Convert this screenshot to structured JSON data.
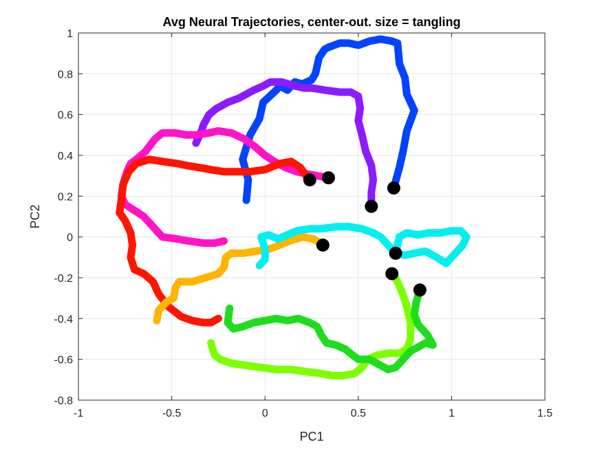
{
  "chart_data": {
    "type": "line",
    "title": "Avg Neural Trajectories, center-out. size = tangling",
    "xlabel": "PC1",
    "ylabel": "PC2",
    "xlim": [
      -1,
      1.5
    ],
    "ylim": [
      -0.8,
      1
    ],
    "xticks": [
      -1,
      -0.5,
      0,
      0.5,
      1,
      1.5
    ],
    "xtick_labels": [
      "-1",
      "-0.5",
      "0",
      "0.5",
      "1",
      "1.5"
    ],
    "yticks": [
      -0.8,
      -0.6,
      -0.4,
      -0.2,
      0,
      0.2,
      0.4,
      0.6,
      0.8,
      1
    ],
    "ytick_labels": [
      "-0.8",
      "-0.6",
      "-0.4",
      "-0.2",
      "0",
      "0.2",
      "0.4",
      "0.6",
      "0.8",
      "1"
    ],
    "grid": true,
    "series": [
      {
        "color": "#0044ff",
        "end_marker": [
          0.69,
          0.24
        ],
        "points": [
          [
            -0.1,
            0.18
          ],
          [
            -0.09,
            0.28
          ],
          [
            -0.12,
            0.38
          ],
          [
            -0.08,
            0.5
          ],
          [
            -0.03,
            0.58
          ],
          [
            -0.01,
            0.66
          ],
          [
            0.06,
            0.72
          ],
          [
            0.08,
            0.74
          ],
          [
            0.12,
            0.72
          ],
          [
            0.16,
            0.76
          ],
          [
            0.2,
            0.75
          ],
          [
            0.25,
            0.77
          ],
          [
            0.27,
            0.8
          ],
          [
            0.29,
            0.88
          ],
          [
            0.32,
            0.92
          ],
          [
            0.34,
            0.93
          ],
          [
            0.4,
            0.95
          ],
          [
            0.45,
            0.95
          ],
          [
            0.5,
            0.94
          ],
          [
            0.56,
            0.96
          ],
          [
            0.62,
            0.97
          ],
          [
            0.68,
            0.96
          ],
          [
            0.71,
            0.95
          ],
          [
            0.72,
            0.85
          ],
          [
            0.75,
            0.78
          ],
          [
            0.76,
            0.7
          ],
          [
            0.8,
            0.62
          ],
          [
            0.76,
            0.52
          ],
          [
            0.74,
            0.42
          ],
          [
            0.72,
            0.34
          ],
          [
            0.69,
            0.24
          ]
        ]
      },
      {
        "color": "#8a1cff",
        "end_marker": [
          0.57,
          0.15
        ],
        "points": [
          [
            -0.37,
            0.46
          ],
          [
            -0.34,
            0.52
          ],
          [
            -0.33,
            0.55
          ],
          [
            -0.3,
            0.6
          ],
          [
            -0.26,
            0.63
          ],
          [
            -0.2,
            0.66
          ],
          [
            -0.14,
            0.68
          ],
          [
            -0.06,
            0.72
          ],
          [
            -0.01,
            0.74
          ],
          [
            0.03,
            0.76
          ],
          [
            0.09,
            0.76
          ],
          [
            0.16,
            0.74
          ],
          [
            0.21,
            0.73
          ],
          [
            0.25,
            0.73
          ],
          [
            0.32,
            0.72
          ],
          [
            0.4,
            0.71
          ],
          [
            0.46,
            0.71
          ],
          [
            0.5,
            0.69
          ],
          [
            0.51,
            0.63
          ],
          [
            0.5,
            0.57
          ],
          [
            0.52,
            0.5
          ],
          [
            0.54,
            0.42
          ],
          [
            0.57,
            0.35
          ],
          [
            0.58,
            0.28
          ],
          [
            0.57,
            0.22
          ],
          [
            0.57,
            0.15
          ]
        ]
      },
      {
        "color": "#ff14c8",
        "end_marker": [
          0.34,
          0.29
        ],
        "points": [
          [
            -0.22,
            -0.02
          ],
          [
            -0.27,
            -0.03
          ],
          [
            -0.33,
            -0.03
          ],
          [
            -0.41,
            -0.02
          ],
          [
            -0.47,
            -0.01
          ],
          [
            -0.55,
            0.0
          ],
          [
            -0.6,
            0.05
          ],
          [
            -0.65,
            0.1
          ],
          [
            -0.7,
            0.13
          ],
          [
            -0.75,
            0.16
          ],
          [
            -0.77,
            0.2
          ],
          [
            -0.76,
            0.26
          ],
          [
            -0.74,
            0.32
          ],
          [
            -0.72,
            0.36
          ],
          [
            -0.69,
            0.38
          ],
          [
            -0.64,
            0.42
          ],
          [
            -0.59,
            0.48
          ],
          [
            -0.55,
            0.51
          ],
          [
            -0.48,
            0.51
          ],
          [
            -0.42,
            0.5
          ],
          [
            -0.37,
            0.5
          ],
          [
            -0.3,
            0.51
          ],
          [
            -0.25,
            0.52
          ],
          [
            -0.18,
            0.51
          ],
          [
            -0.11,
            0.48
          ],
          [
            -0.05,
            0.44
          ],
          [
            0.0,
            0.4
          ],
          [
            0.05,
            0.37
          ],
          [
            0.11,
            0.34
          ],
          [
            0.17,
            0.32
          ],
          [
            0.22,
            0.31
          ],
          [
            0.28,
            0.3
          ],
          [
            0.34,
            0.29
          ]
        ]
      },
      {
        "color": "#ff1400",
        "end_marker": [
          0.24,
          0.28
        ],
        "points": [
          [
            -0.25,
            -0.4
          ],
          [
            -0.29,
            -0.42
          ],
          [
            -0.33,
            -0.42
          ],
          [
            -0.39,
            -0.41
          ],
          [
            -0.45,
            -0.39
          ],
          [
            -0.52,
            -0.34
          ],
          [
            -0.57,
            -0.28
          ],
          [
            -0.6,
            -0.22
          ],
          [
            -0.65,
            -0.18
          ],
          [
            -0.7,
            -0.16
          ],
          [
            -0.72,
            -0.1
          ],
          [
            -0.71,
            -0.04
          ],
          [
            -0.72,
            0.02
          ],
          [
            -0.75,
            0.08
          ],
          [
            -0.78,
            0.12
          ],
          [
            -0.77,
            0.18
          ],
          [
            -0.76,
            0.26
          ],
          [
            -0.73,
            0.32
          ],
          [
            -0.69,
            0.36
          ],
          [
            -0.62,
            0.38
          ],
          [
            -0.55,
            0.37
          ],
          [
            -0.47,
            0.36
          ],
          [
            -0.42,
            0.35
          ],
          [
            -0.35,
            0.34
          ],
          [
            -0.29,
            0.33
          ],
          [
            -0.22,
            0.32
          ],
          [
            -0.15,
            0.32
          ],
          [
            -0.08,
            0.32
          ],
          [
            0.0,
            0.33
          ],
          [
            0.08,
            0.36
          ],
          [
            0.14,
            0.37
          ],
          [
            0.19,
            0.34
          ],
          [
            0.22,
            0.3
          ],
          [
            0.24,
            0.28
          ]
        ]
      },
      {
        "color": "#ffb400",
        "end_marker": [
          0.31,
          -0.04
        ],
        "points": [
          [
            -0.58,
            -0.41
          ],
          [
            -0.57,
            -0.36
          ],
          [
            -0.53,
            -0.32
          ],
          [
            -0.49,
            -0.3
          ],
          [
            -0.48,
            -0.25
          ],
          [
            -0.46,
            -0.22
          ],
          [
            -0.39,
            -0.22
          ],
          [
            -0.32,
            -0.2
          ],
          [
            -0.25,
            -0.18
          ],
          [
            -0.22,
            -0.15
          ],
          [
            -0.21,
            -0.1
          ],
          [
            -0.18,
            -0.08
          ],
          [
            -0.12,
            -0.08
          ],
          [
            -0.05,
            -0.07
          ],
          [
            0.02,
            -0.06
          ],
          [
            0.08,
            -0.04
          ],
          [
            0.13,
            -0.02
          ],
          [
            0.2,
            0.0
          ],
          [
            0.26,
            -0.01
          ],
          [
            0.31,
            -0.04
          ]
        ]
      },
      {
        "color": "#00f0f0",
        "end_marker": [
          0.7,
          -0.08
        ],
        "points": [
          [
            -0.03,
            -0.14
          ],
          [
            0.0,
            -0.11
          ],
          [
            0.0,
            -0.06
          ],
          [
            -0.02,
            0.0
          ],
          [
            0.02,
            0.01
          ],
          [
            0.07,
            -0.01
          ],
          [
            0.12,
            0.01
          ],
          [
            0.17,
            0.03
          ],
          [
            0.24,
            0.04
          ],
          [
            0.3,
            0.04
          ],
          [
            0.38,
            0.05
          ],
          [
            0.45,
            0.05
          ],
          [
            0.52,
            0.04
          ],
          [
            0.58,
            0.02
          ],
          [
            0.62,
            0.0
          ],
          [
            0.66,
            -0.04
          ],
          [
            0.7,
            -0.08
          ],
          [
            0.75,
            -0.09
          ],
          [
            0.8,
            -0.08
          ],
          [
            0.86,
            -0.07
          ],
          [
            0.92,
            -0.1
          ],
          [
            0.97,
            -0.13
          ],
          [
            1.02,
            -0.08
          ],
          [
            1.06,
            -0.04
          ],
          [
            1.08,
            0.0
          ],
          [
            1.05,
            0.03
          ],
          [
            1.0,
            0.03
          ],
          [
            0.94,
            0.02
          ],
          [
            0.88,
            0.02
          ],
          [
            0.82,
            0.01
          ],
          [
            0.76,
            0.02
          ],
          [
            0.72,
            0.0
          ],
          [
            0.7,
            -0.08
          ]
        ]
      },
      {
        "color": "#7dff00",
        "end_marker": [
          0.68,
          -0.18
        ],
        "points": [
          [
            -0.29,
            -0.52
          ],
          [
            -0.27,
            -0.58
          ],
          [
            -0.24,
            -0.6
          ],
          [
            -0.18,
            -0.62
          ],
          [
            -0.1,
            -0.63
          ],
          [
            -0.02,
            -0.64
          ],
          [
            0.06,
            -0.65
          ],
          [
            0.14,
            -0.65
          ],
          [
            0.22,
            -0.66
          ],
          [
            0.3,
            -0.67
          ],
          [
            0.36,
            -0.68
          ],
          [
            0.42,
            -0.68
          ],
          [
            0.48,
            -0.67
          ],
          [
            0.52,
            -0.64
          ],
          [
            0.55,
            -0.6
          ],
          [
            0.6,
            -0.58
          ],
          [
            0.66,
            -0.57
          ],
          [
            0.72,
            -0.57
          ],
          [
            0.76,
            -0.55
          ],
          [
            0.78,
            -0.5
          ],
          [
            0.78,
            -0.42
          ],
          [
            0.76,
            -0.34
          ],
          [
            0.73,
            -0.26
          ],
          [
            0.7,
            -0.2
          ],
          [
            0.68,
            -0.18
          ]
        ]
      },
      {
        "color": "#1edc1e",
        "end_marker": [
          0.83,
          -0.26
        ],
        "points": [
          [
            -0.19,
            -0.35
          ],
          [
            -0.2,
            -0.42
          ],
          [
            -0.17,
            -0.45
          ],
          [
            -0.12,
            -0.44
          ],
          [
            -0.06,
            -0.42
          ],
          [
            0.0,
            -0.41
          ],
          [
            0.06,
            -0.4
          ],
          [
            0.12,
            -0.41
          ],
          [
            0.18,
            -0.4
          ],
          [
            0.24,
            -0.42
          ],
          [
            0.28,
            -0.44
          ],
          [
            0.3,
            -0.48
          ],
          [
            0.33,
            -0.52
          ],
          [
            0.38,
            -0.53
          ],
          [
            0.43,
            -0.55
          ],
          [
            0.47,
            -0.58
          ],
          [
            0.5,
            -0.6
          ],
          [
            0.56,
            -0.6
          ],
          [
            0.62,
            -0.63
          ],
          [
            0.66,
            -0.65
          ],
          [
            0.7,
            -0.64
          ],
          [
            0.74,
            -0.6
          ],
          [
            0.78,
            -0.56
          ],
          [
            0.82,
            -0.54
          ],
          [
            0.86,
            -0.52
          ],
          [
            0.9,
            -0.53
          ],
          [
            0.87,
            -0.48
          ],
          [
            0.82,
            -0.43
          ],
          [
            0.8,
            -0.38
          ],
          [
            0.81,
            -0.32
          ],
          [
            0.83,
            -0.26
          ]
        ]
      }
    ]
  }
}
